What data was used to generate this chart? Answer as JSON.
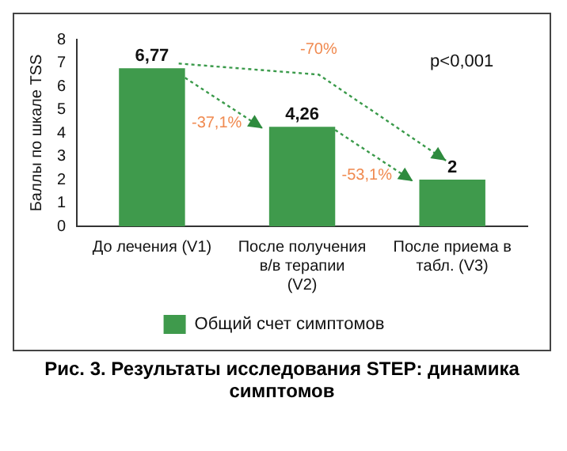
{
  "chart_data": {
    "type": "bar",
    "title": "Рис. 3. Результаты исследования STEP: динамика симптомов",
    "ylabel": "Баллы по шкале TSS",
    "categories": [
      "До лечения (V1)",
      "После получения в/в терапии (V2)",
      "После приема в табл. (V3)"
    ],
    "series": [
      {
        "name": "Общий счет симптомов",
        "color": "#3f9a4c",
        "values": [
          6.77,
          4.26,
          2
        ]
      }
    ],
    "value_labels": [
      "6,77",
      "4,26",
      "2"
    ],
    "annotations": [
      "-37,1%",
      "-53,1%",
      "-70%",
      "p<0,001"
    ],
    "ylim": [
      0,
      8
    ],
    "yticks": [
      0,
      1,
      2,
      3,
      4,
      5,
      6,
      7,
      8
    ],
    "grid": false,
    "legend": "bottom"
  }
}
